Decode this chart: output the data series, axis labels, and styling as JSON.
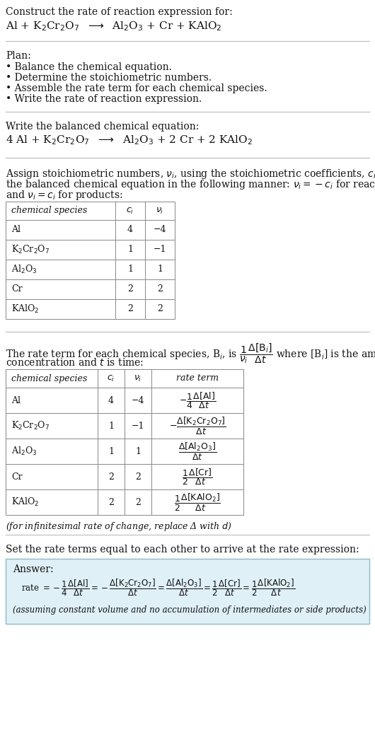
{
  "title_line1": "Construct the rate of reaction expression for:",
  "title_line2": "Al + K$_2$Cr$_2$O$_7$  $\\longrightarrow$  Al$_2$O$_3$ + Cr + KAlO$_2$",
  "plan_header": "Plan:",
  "plan_items": [
    "• Balance the chemical equation.",
    "• Determine the stoichiometric numbers.",
    "• Assemble the rate term for each chemical species.",
    "• Write the rate of reaction expression."
  ],
  "balanced_header": "Write the balanced chemical equation:",
  "balanced_eq": "4 Al + K$_2$Cr$_2$O$_7$  $\\longrightarrow$  Al$_2$O$_3$ + 2 Cr + 2 KAlO$_2$",
  "stoich_intro1": "Assign stoichiometric numbers, $\\nu_i$, using the stoichiometric coefficients, $c_i$, from",
  "stoich_intro2": "the balanced chemical equation in the following manner: $\\nu_i = -c_i$ for reactants",
  "stoich_intro3": "and $\\nu_i = c_i$ for products:",
  "table1_headers": [
    "chemical species",
    "$c_i$",
    "$\\nu_i$"
  ],
  "table1_rows": [
    [
      "Al",
      "4",
      "−4"
    ],
    [
      "K$_2$Cr$_2$O$_7$",
      "1",
      "−1"
    ],
    [
      "Al$_2$O$_3$",
      "1",
      "1"
    ],
    [
      "Cr",
      "2",
      "2"
    ],
    [
      "KAlO$_2$",
      "2",
      "2"
    ]
  ],
  "rate_intro1": "The rate term for each chemical species, B$_i$, is $\\dfrac{1}{\\nu_i}\\dfrac{\\Delta[\\mathrm{B}_i]}{\\Delta t}$ where [B$_i$] is the amount",
  "rate_intro2": "concentration and $t$ is time:",
  "table2_headers": [
    "chemical species",
    "$c_i$",
    "$\\nu_i$",
    "rate term"
  ],
  "table2_rows": [
    [
      "Al",
      "4",
      "−4",
      "$-\\dfrac{1}{4}\\dfrac{\\Delta[\\mathrm{Al}]}{\\Delta t}$"
    ],
    [
      "K$_2$Cr$_2$O$_7$",
      "1",
      "−1",
      "$-\\dfrac{\\Delta[\\mathrm{K_2Cr_2O_7}]}{\\Delta t}$"
    ],
    [
      "Al$_2$O$_3$",
      "1",
      "1",
      "$\\dfrac{\\Delta[\\mathrm{Al_2O_3}]}{\\Delta t}$"
    ],
    [
      "Cr",
      "2",
      "2",
      "$\\dfrac{1}{2}\\dfrac{\\Delta[\\mathrm{Cr}]}{\\Delta t}$"
    ],
    [
      "KAlO$_2$",
      "2",
      "2",
      "$\\dfrac{1}{2}\\dfrac{\\Delta[\\mathrm{KAlO_2}]}{\\Delta t}$"
    ]
  ],
  "infinitesimal_note": "(for infinitesimal rate of change, replace Δ with $d$)",
  "set_equal_text": "Set the rate terms equal to each other to arrive at the rate expression:",
  "answer_label": "Answer:",
  "answer_box_color": "#dff0f7",
  "answer_box_border": "#8bbccc",
  "rate_expression": "rate $= -\\dfrac{1}{4}\\dfrac{\\Delta[\\mathrm{Al}]}{\\Delta t} = -\\dfrac{\\Delta[\\mathrm{K_2Cr_2O_7}]}{\\Delta t} = \\dfrac{\\Delta[\\mathrm{Al_2O_3}]}{\\Delta t} = \\dfrac{1}{2}\\dfrac{\\Delta[\\mathrm{Cr}]}{\\Delta t} = \\dfrac{1}{2}\\dfrac{\\Delta[\\mathrm{KAlO_2}]}{\\Delta t}$",
  "assuming_note": "(assuming constant volume and no accumulation of intermediates or side products)",
  "bg_color": "#ffffff",
  "text_color": "#111111",
  "divider_color": "#bbbbbb",
  "table_border_color": "#888888"
}
